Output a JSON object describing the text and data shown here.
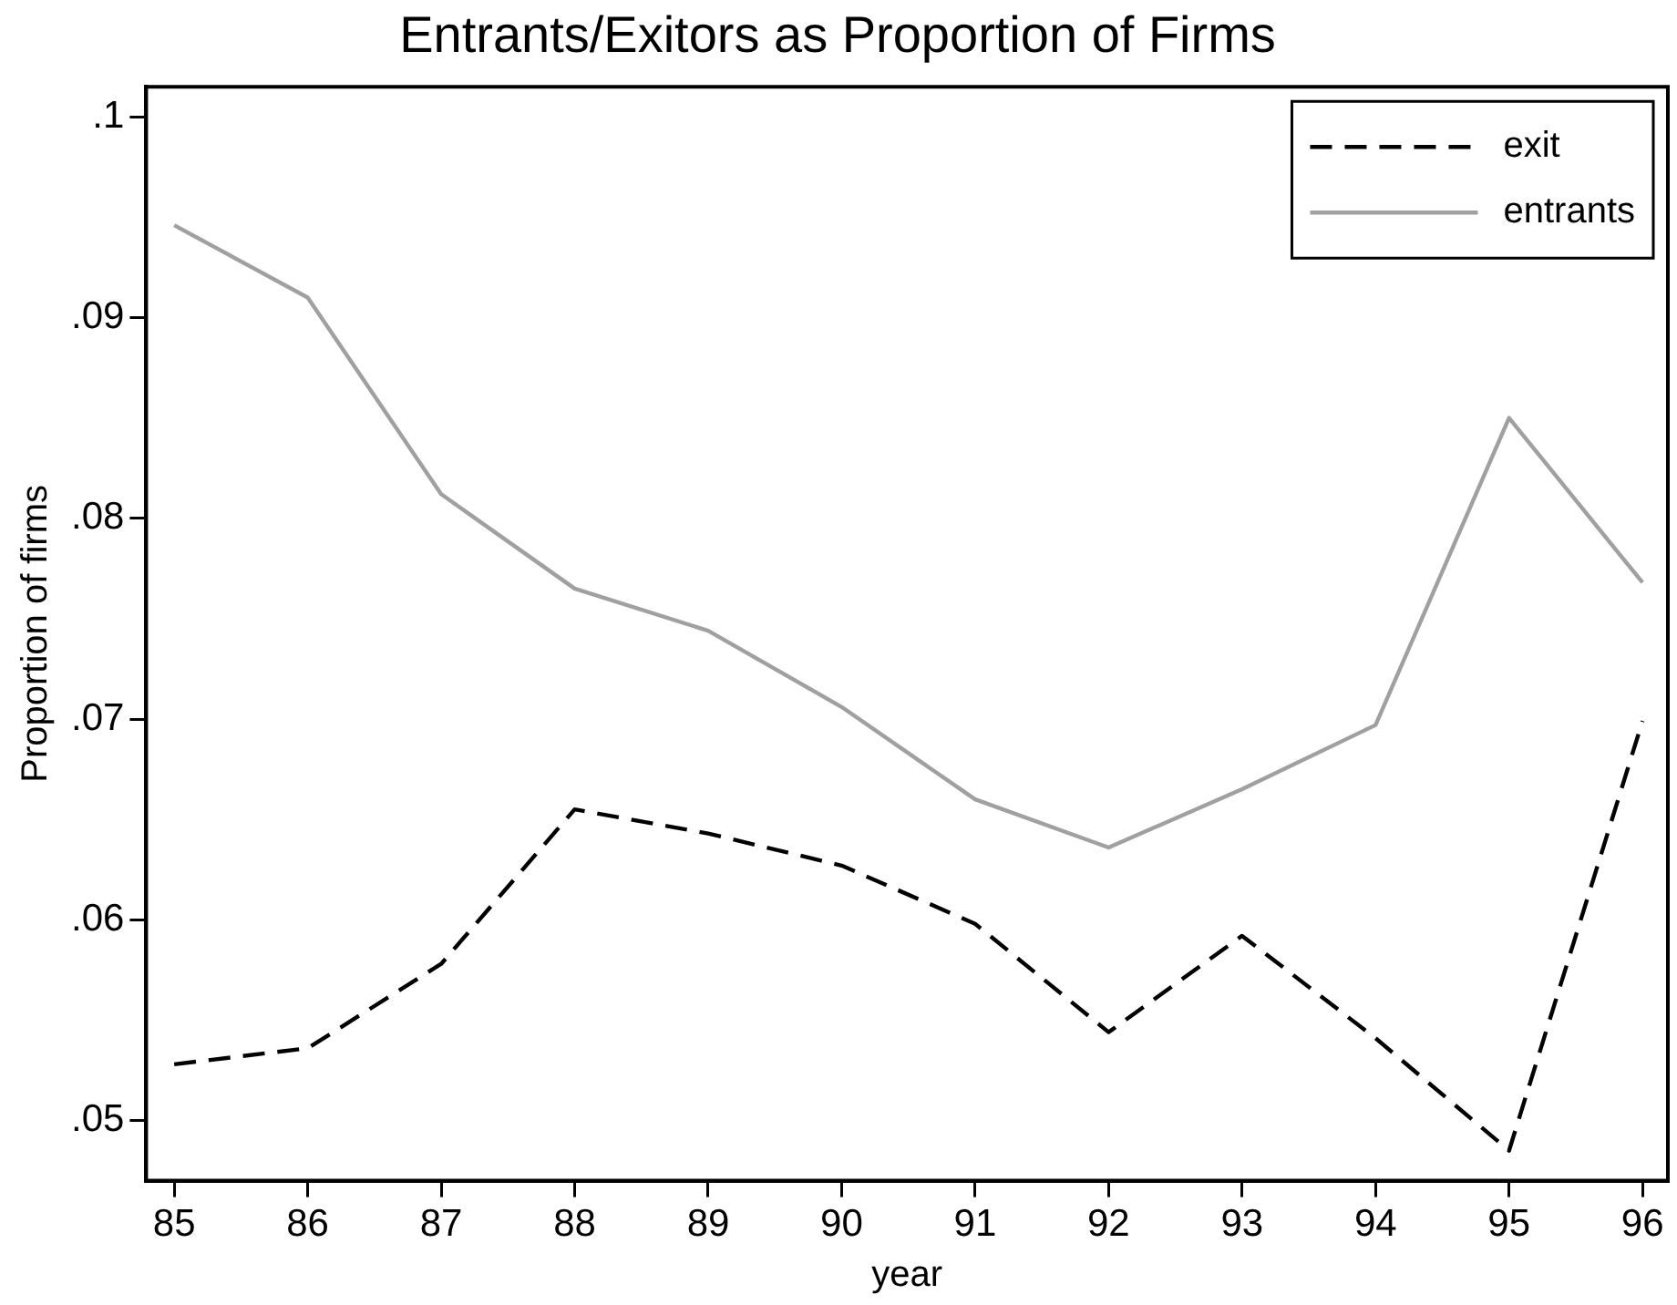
{
  "chart_data": {
    "type": "line",
    "title": "Entrants/Exitors as Proportion of Firms",
    "xlabel": "year",
    "ylabel": "Proportion of firms",
    "x": [
      85,
      86,
      87,
      88,
      89,
      90,
      91,
      92,
      93,
      94,
      95,
      96
    ],
    "series": [
      {
        "name": "exit",
        "color": "#000000",
        "line_style": "dashed",
        "values": [
          0.0528,
          0.0536,
          0.0578,
          0.0655,
          0.0643,
          0.0627,
          0.0598,
          0.0544,
          0.0592,
          0.0541,
          0.0485,
          0.0699
        ]
      },
      {
        "name": "entrants",
        "color": "#a0a0a0",
        "line_style": "solid",
        "values": [
          0.0946,
          0.091,
          0.0812,
          0.0765,
          0.0744,
          0.0706,
          0.066,
          0.0636,
          0.0665,
          0.0697,
          0.085,
          0.0768
        ]
      }
    ],
    "xlim": [
      84.79,
      96.19
    ],
    "xticks": [
      85,
      86,
      87,
      88,
      89,
      90,
      91,
      92,
      93,
      94,
      95,
      96
    ],
    "ylim": [
      0.047,
      0.1015
    ],
    "yticks": [
      {
        "value": 0.05,
        "label": ".05"
      },
      {
        "value": 0.06,
        "label": ".06"
      },
      {
        "value": 0.07,
        "label": ".07"
      },
      {
        "value": 0.08,
        "label": ".08"
      },
      {
        "value": 0.09,
        "label": ".09"
      },
      {
        "value": 0.1,
        "label": ".1"
      }
    ],
    "grid": false,
    "legend": "top right",
    "marker": "none"
  }
}
